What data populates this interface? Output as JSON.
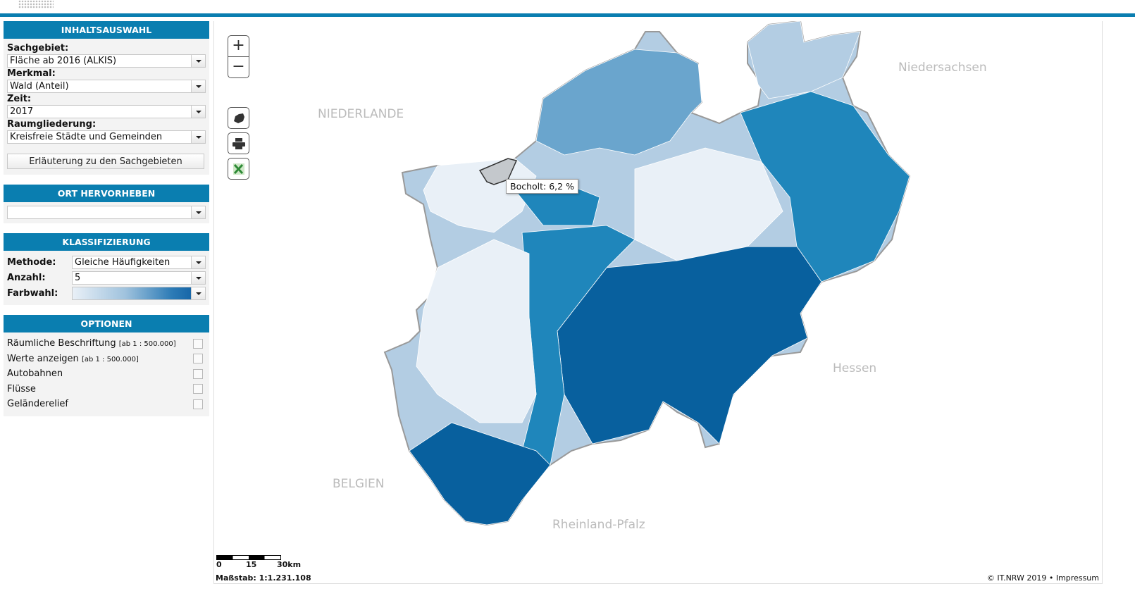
{
  "inhaltsauswahl": {
    "title": "INHALTSAUSWAHL",
    "sachgebiet_label": "Sachgebiet:",
    "sachgebiet": "Fläche ab 2016 (ALKIS)",
    "merkmal_label": "Merkmal:",
    "merkmal": "Wald (Anteil)",
    "zeit_label": "Zeit:",
    "zeit": "2017",
    "raum_label": "Raumgliederung:",
    "raum": "Kreisfreie Städte und Gemeinden",
    "button": "Erläuterung zu den Sachgebieten"
  },
  "ort": {
    "title": "ORT HERVORHEBEN",
    "value": ""
  },
  "klass": {
    "title": "KLASSIFIZIERUNG",
    "methode_label": "Methode:",
    "methode": "Gleiche Häufigkeiten",
    "anzahl_label": "Anzahl:",
    "anzahl": "5",
    "farbwahl_label": "Farbwahl:",
    "palette": [
      "#e9f0f7",
      "#b3cde3",
      "#6aa5cd",
      "#1f86bb",
      "#08609e"
    ]
  },
  "optionen": {
    "title": "OPTIONEN",
    "items": [
      {
        "label": "Räumliche Beschriftung",
        "note": "[ab 1 : 500.000]",
        "checked": false
      },
      {
        "label": "Werte anzeigen",
        "note": "[ab 1 : 500.000]",
        "checked": false
      },
      {
        "label": "Autobahnen",
        "note": "",
        "checked": false
      },
      {
        "label": "Flüsse",
        "note": "",
        "checked": false
      },
      {
        "label": "Geländerelief",
        "note": "",
        "checked": false
      }
    ]
  },
  "map": {
    "zoom_in": "+",
    "zoom_out": "−",
    "tools": [
      "nrw-shape-icon",
      "print-icon",
      "excel-icon"
    ],
    "neighbors": {
      "nl": "NIEDERLANDE",
      "ns": "Niedersachsen",
      "he": "Hessen",
      "be": "BELGIEN",
      "rp": "Rheinland-Pfalz"
    },
    "tooltip": "Bocholt: 6,2 %",
    "highlight_color": "#c4c8cc",
    "scale": {
      "t0": "0",
      "t1": "15",
      "t2": "30km"
    },
    "massstab": "Maßstab: 1:1.231.108",
    "copyright": "© IT.NRW 2019 • Impressum"
  }
}
